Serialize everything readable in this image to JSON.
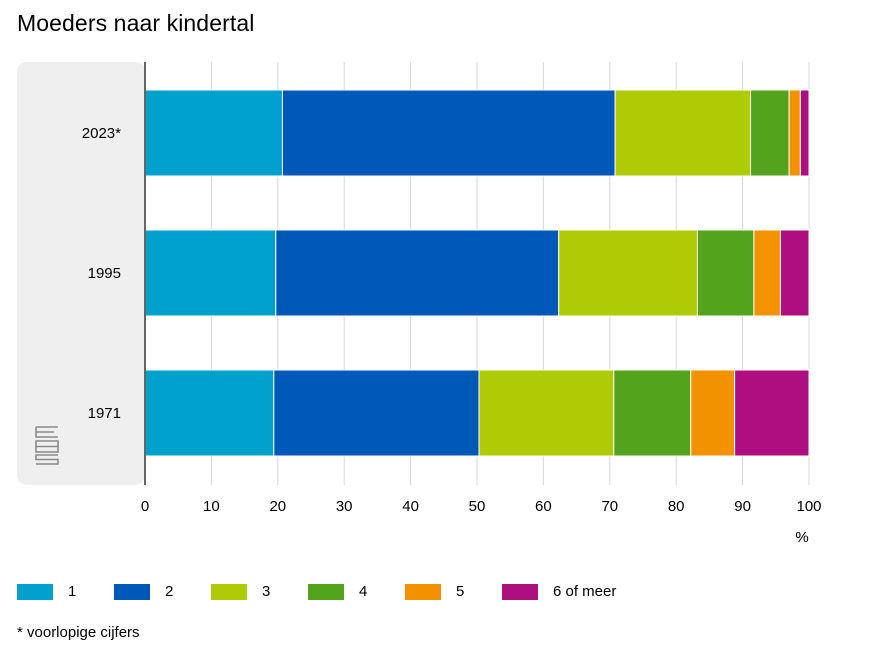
{
  "title": "Moeders naar kindertal",
  "footnote": "* voorlopige cijfers",
  "colors": {
    "1": "#00a1cd",
    "2": "#0058b8",
    "3": "#afcb05",
    "4": "#53a31d",
    "5": "#f39200",
    "6 of meer": "#af0e80",
    "category_panel": "#efefef",
    "grid": "#d9d9d9",
    "axis": "#666666"
  },
  "legend": [
    {
      "label": "1",
      "color": "#00a1cd"
    },
    {
      "label": "2",
      "color": "#0058b8"
    },
    {
      "label": "3",
      "color": "#afcb05"
    },
    {
      "label": "4",
      "color": "#53a31d"
    },
    {
      "label": "5",
      "color": "#f39200"
    },
    {
      "label": "6 of meer",
      "color": "#af0e80"
    }
  ],
  "chart_data": {
    "type": "bar",
    "orientation": "horizontal",
    "stacked": true,
    "title": "Moeders naar kindertal",
    "categories": [
      "2023*",
      "1995",
      "1971"
    ],
    "series": [
      {
        "name": "1",
        "values": [
          20.7,
          19.7,
          19.4
        ]
      },
      {
        "name": "2",
        "values": [
          50.1,
          42.6,
          30.9
        ]
      },
      {
        "name": "3",
        "values": [
          20.4,
          20.9,
          20.3
        ]
      },
      {
        "name": "4",
        "values": [
          5.8,
          8.5,
          11.6
        ]
      },
      {
        "name": "5",
        "values": [
          1.7,
          4.0,
          6.6
        ]
      },
      {
        "name": "6 of meer",
        "values": [
          1.3,
          4.3,
          11.2
        ]
      }
    ],
    "xlim": [
      0,
      100
    ],
    "xticks": [
      "0",
      "10",
      "20",
      "30",
      "40",
      "50",
      "60",
      "70",
      "80",
      "90",
      "100"
    ],
    "xlabel": "%",
    "grid": true,
    "legend_position": "bottom"
  }
}
